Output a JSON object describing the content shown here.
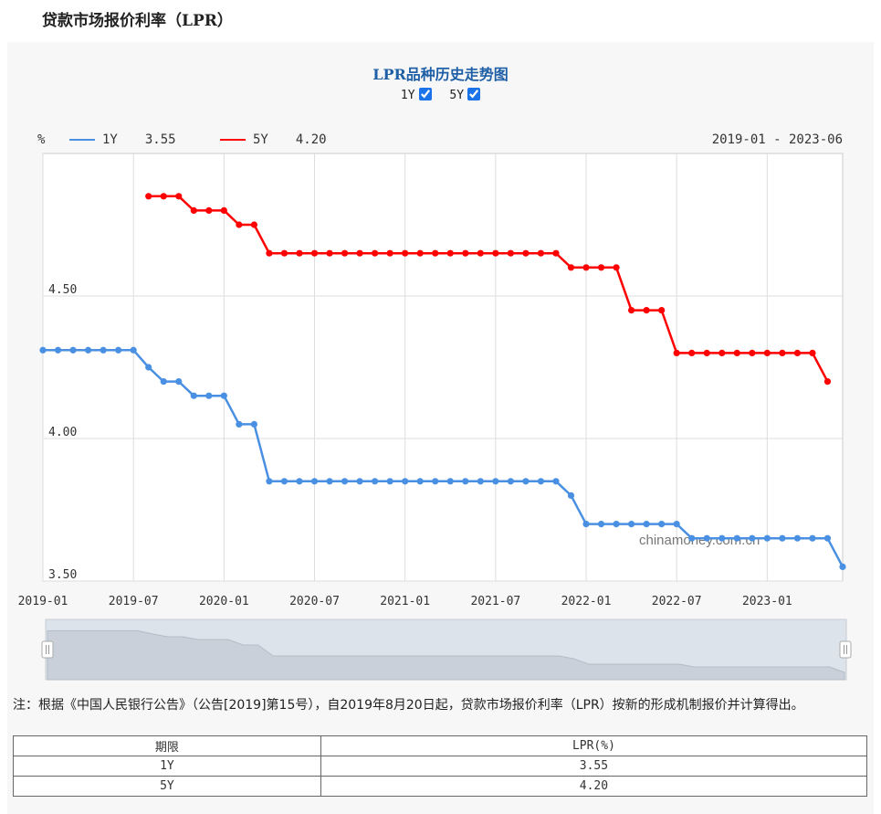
{
  "page_title": "贷款市场报价利率（LPR）",
  "chart_title": "LPR品种历史走势图",
  "toggles": [
    {
      "label": "1Y",
      "checked": true
    },
    {
      "label": "5Y",
      "checked": true
    }
  ],
  "legend": {
    "unit": "%",
    "items": [
      {
        "name": "1Y",
        "value": "3.55",
        "color": "#4a90e2"
      },
      {
        "name": "5Y",
        "value": "4.20",
        "color": "#ff0000"
      }
    ],
    "range": "2019-01 - 2023-06"
  },
  "watermark": "chinamoney.com.cn",
  "chart_data": {
    "type": "line",
    "x_start": "2019-01",
    "x_ticks": [
      "2019-01",
      "2019-07",
      "2020-01",
      "2020-07",
      "2021-01",
      "2021-07",
      "2022-01",
      "2022-07",
      "2023-01"
    ],
    "y_ticks": [
      "3.50",
      "4.00",
      "4.50"
    ],
    "ylim": [
      3.5,
      5.0
    ],
    "grid": true,
    "series": [
      {
        "name": "1Y",
        "color": "#4a90e2",
        "start": "2019-01",
        "values": [
          4.31,
          4.31,
          4.31,
          4.31,
          4.31,
          4.31,
          4.31,
          4.25,
          4.2,
          4.2,
          4.15,
          4.15,
          4.15,
          4.05,
          4.05,
          3.85,
          3.85,
          3.85,
          3.85,
          3.85,
          3.85,
          3.85,
          3.85,
          3.85,
          3.85,
          3.85,
          3.85,
          3.85,
          3.85,
          3.85,
          3.85,
          3.85,
          3.85,
          3.85,
          3.85,
          3.8,
          3.7,
          3.7,
          3.7,
          3.7,
          3.7,
          3.7,
          3.7,
          3.65,
          3.65,
          3.65,
          3.65,
          3.65,
          3.65,
          3.65,
          3.65,
          3.65,
          3.65,
          3.55
        ]
      },
      {
        "name": "5Y",
        "color": "#ff0000",
        "start": "2019-08",
        "values": [
          4.85,
          4.85,
          4.85,
          4.8,
          4.8,
          4.8,
          4.75,
          4.75,
          4.65,
          4.65,
          4.65,
          4.65,
          4.65,
          4.65,
          4.65,
          4.65,
          4.65,
          4.65,
          4.65,
          4.65,
          4.65,
          4.65,
          4.65,
          4.65,
          4.65,
          4.65,
          4.65,
          4.65,
          4.6,
          4.6,
          4.6,
          4.6,
          4.45,
          4.45,
          4.45,
          4.3,
          4.3,
          4.3,
          4.3,
          4.3,
          4.3,
          4.3,
          4.3,
          4.3,
          4.3,
          4.2
        ]
      }
    ]
  },
  "note": "注：根据《中国人民银行公告》（公告[2019]第15号），自2019年8月20日起，贷款市场报价利率（LPR）按新的形成机制报价并计算得出。",
  "table": {
    "headers": [
      "期限",
      "LPR(%)"
    ],
    "rows": [
      [
        "1Y",
        "3.55"
      ],
      [
        "5Y",
        "4.20"
      ]
    ]
  }
}
